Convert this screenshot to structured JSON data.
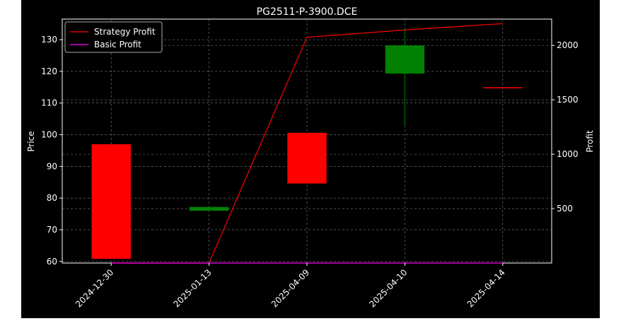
{
  "chart_data": {
    "type": "candlestick",
    "title": "PG2511-P-3900.DCE",
    "ylabel_left": "Price",
    "ylabel_right": "Profit",
    "categories": [
      "2024-12-30",
      "2025-01-13",
      "2025-04-09",
      "2025-04-10",
      "2025-04-14"
    ],
    "ylim_left": [
      59.5,
      136.5
    ],
    "ylim_right": [
      0,
      2242
    ],
    "yticks_left": [
      60,
      70,
      80,
      90,
      100,
      110,
      120,
      130
    ],
    "yticks_right": [
      500,
      1000,
      1500,
      2000
    ],
    "grid": true,
    "legend_position": "top-left",
    "candles": [
      {
        "date": "2024-12-30",
        "open": 97,
        "high": 97,
        "low": 60.8,
        "close": 60.8,
        "direction": "down"
      },
      {
        "date": "2025-01-13",
        "open": 76,
        "high": 77.2,
        "low": 76,
        "close": 77.2,
        "direction": "up"
      },
      {
        "date": "2025-04-09",
        "open": 100.6,
        "high": 100.6,
        "low": 84.6,
        "close": 84.6,
        "direction": "down"
      },
      {
        "date": "2025-04-10",
        "open": 119.3,
        "high": 133.5,
        "low": 103,
        "close": 128.2,
        "direction": "up"
      },
      {
        "date": "2025-04-14",
        "open": 115,
        "high": 115,
        "low": 115,
        "close": 115,
        "direction": "down"
      }
    ],
    "series": [
      {
        "name": "Strategy Profit",
        "color": "#ff0000",
        "axis": "right",
        "values": [
          0,
          0,
          2075,
          2142,
          2200
        ]
      },
      {
        "name": "Basic Profit",
        "color": "#ff00ff",
        "axis": "right",
        "values": [
          0,
          0,
          0,
          0,
          0
        ]
      }
    ],
    "colors": {
      "up": "#008000",
      "down": "#ff0000",
      "background": "#000000",
      "grid": "#808080"
    }
  }
}
